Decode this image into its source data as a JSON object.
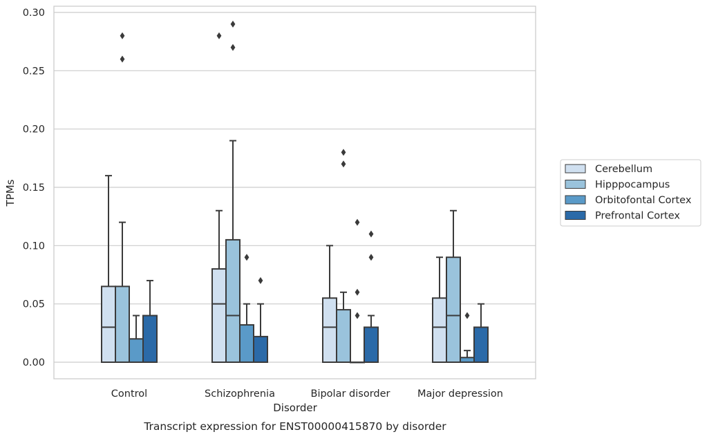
{
  "chart_data": {
    "type": "box",
    "title": "",
    "caption": "Transcript expression for ENST00000415870 by disorder",
    "xlabel": "Disorder",
    "ylabel": "TPMs",
    "ylim": [
      -0.014,
      0.305
    ],
    "yticks": [
      0.0,
      0.05,
      0.1,
      0.15,
      0.2,
      0.25,
      0.3
    ],
    "ytick_labels": [
      "0.00",
      "0.05",
      "0.10",
      "0.15",
      "0.20",
      "0.25",
      "0.30"
    ],
    "grid": "horizontal",
    "legend_position": "right",
    "categories": [
      "Control",
      "Schizophrenia",
      "Bipolar disorder",
      "Major depression"
    ],
    "series": [
      {
        "name": "Cerebellum",
        "color": "#d0e0f0",
        "boxes": [
          {
            "q1": 0.0,
            "median": 0.03,
            "q3": 0.065,
            "whisker_low": 0.0,
            "whisker_high": 0.16,
            "outliers": []
          },
          {
            "q1": 0.0,
            "median": 0.05,
            "q3": 0.08,
            "whisker_low": 0.0,
            "whisker_high": 0.13,
            "outliers": [
              0.28
            ]
          },
          {
            "q1": 0.0,
            "median": 0.03,
            "q3": 0.055,
            "whisker_low": 0.0,
            "whisker_high": 0.1,
            "outliers": []
          },
          {
            "q1": 0.0,
            "median": 0.03,
            "q3": 0.055,
            "whisker_low": 0.0,
            "whisker_high": 0.09,
            "outliers": []
          }
        ]
      },
      {
        "name": "Hipppocampus",
        "color": "#9ac3dc",
        "boxes": [
          {
            "q1": 0.0,
            "median": 0.065,
            "q3": 0.065,
            "whisker_low": 0.0,
            "whisker_high": 0.12,
            "outliers": [
              0.26,
              0.28
            ]
          },
          {
            "q1": 0.0,
            "median": 0.04,
            "q3": 0.105,
            "whisker_low": 0.0,
            "whisker_high": 0.19,
            "outliers": [
              0.27,
              0.29
            ]
          },
          {
            "q1": 0.0,
            "median": 0.045,
            "q3": 0.045,
            "whisker_low": 0.0,
            "whisker_high": 0.06,
            "outliers": [
              0.17,
              0.18
            ]
          },
          {
            "q1": 0.0,
            "median": 0.04,
            "q3": 0.09,
            "whisker_low": 0.0,
            "whisker_high": 0.13,
            "outliers": []
          }
        ]
      },
      {
        "name": "Orbitofontal Cortex",
        "color": "#5a9ac8",
        "boxes": [
          {
            "q1": 0.0,
            "median": 0.02,
            "q3": 0.02,
            "whisker_low": 0.0,
            "whisker_high": 0.04,
            "outliers": []
          },
          {
            "q1": 0.0,
            "median": 0.032,
            "q3": 0.032,
            "whisker_low": 0.0,
            "whisker_high": 0.05,
            "outliers": [
              0.09
            ]
          },
          {
            "q1": 0.0,
            "median": 0.0,
            "q3": 0.0,
            "whisker_low": 0.0,
            "whisker_high": 0.0,
            "outliers": [
              0.04,
              0.06,
              0.12
            ]
          },
          {
            "q1": 0.0,
            "median": 0.004,
            "q3": 0.004,
            "whisker_low": 0.0,
            "whisker_high": 0.01,
            "outliers": [
              0.04
            ]
          }
        ]
      },
      {
        "name": "Prefrontal Cortex",
        "color": "#2b6aa8",
        "boxes": [
          {
            "q1": 0.0,
            "median": 0.04,
            "q3": 0.04,
            "whisker_low": 0.0,
            "whisker_high": 0.07,
            "outliers": []
          },
          {
            "q1": 0.0,
            "median": 0.022,
            "q3": 0.022,
            "whisker_low": 0.0,
            "whisker_high": 0.05,
            "outliers": [
              0.07
            ]
          },
          {
            "q1": 0.0,
            "median": 0.03,
            "q3": 0.03,
            "whisker_low": 0.0,
            "whisker_high": 0.04,
            "outliers": [
              0.09,
              0.11
            ]
          },
          {
            "q1": 0.0,
            "median": 0.03,
            "q3": 0.03,
            "whisker_low": 0.0,
            "whisker_high": 0.05,
            "outliers": []
          }
        ]
      }
    ]
  }
}
